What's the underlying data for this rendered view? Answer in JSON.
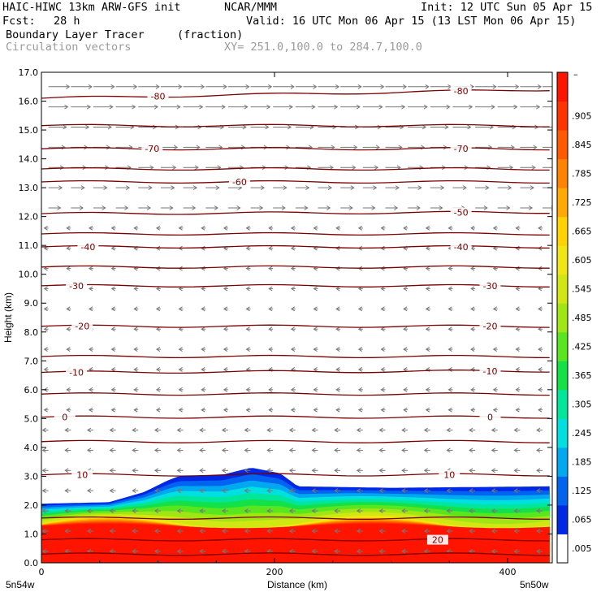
{
  "header": {
    "model": "HAIC-HIWC 13km ARW-GFS init",
    "org": "NCAR/MMM",
    "init": "Init: 12 UTC Sun 05 Apr 15",
    "fcst_label": "Fcst:",
    "fcst_value": "28 h",
    "valid": "Valid: 16 UTC Mon 06 Apr 15 (13 LST Mon 06 Apr 15)",
    "field": "Boundary Layer Tracer",
    "units": "(fraction)",
    "vectors": "Circulation vectors",
    "xy": "XY= 251.0,100.0 to 284.7,100.0"
  },
  "colorbar": {
    "labels": [
      ".005",
      ".065",
      ".125",
      ".185",
      ".245",
      ".305",
      ".365",
      ".425",
      ".485",
      ".545",
      ".605",
      ".665",
      ".725",
      ".785",
      ".845",
      ".905"
    ],
    "top_label": "–",
    "colors": [
      "#ffffff",
      "#0028e6",
      "#0064f0",
      "#00a8f0",
      "#00e0e0",
      "#00e69a",
      "#14e048",
      "#5ae61e",
      "#a0e614",
      "#d2e614",
      "#f0e614",
      "#ffd200",
      "#ffaa00",
      "#ff8200",
      "#ff5a00",
      "#ff3200",
      "#ff1400"
    ]
  },
  "chart_data": {
    "type": "contour",
    "xlabel": "Distance (km)",
    "ylabel": "Height (km)",
    "xlim": [
      0,
      436
    ],
    "ylim": [
      0,
      17
    ],
    "xticks": [
      0,
      200,
      400
    ],
    "yticks": [
      "0.0",
      "1.0",
      "2.0",
      "3.0",
      "4.0",
      "5.0",
      "6.0",
      "7.0",
      "8.0",
      "9.0",
      "10.0",
      "11.0",
      "12.0",
      "13.0",
      "14.0",
      "15.0",
      "16.0",
      "17.0"
    ],
    "x_end_labels": [
      "5n54w",
      "5n50w"
    ],
    "tracer_top_km": [
      [
        0,
        2.05
      ],
      [
        58,
        2.1
      ],
      [
        88,
        2.45
      ],
      [
        108,
        2.85
      ],
      [
        118,
        3.0
      ],
      [
        155,
        3.05
      ],
      [
        180,
        3.3
      ],
      [
        205,
        3.1
      ],
      [
        220,
        2.65
      ],
      [
        300,
        2.6
      ],
      [
        436,
        2.65
      ]
    ],
    "isotherms": [
      {
        "label": "-80",
        "y": [
          16.1,
          16.4
        ],
        "label_x": [
          100,
          360
        ]
      },
      {
        "label": "-70",
        "y": [
          14.35,
          14.35
        ],
        "label_x": [
          95,
          360
        ]
      },
      {
        "label": "-60",
        "y": [
          13.2,
          13.2
        ],
        "label_x": [
          170,
          null
        ]
      },
      {
        "label": "-50",
        "y": [
          12.1,
          12.15
        ],
        "label_x": [
          null,
          360
        ]
      },
      {
        "label": "-40",
        "y": [
          10.95,
          10.95
        ],
        "label_x": [
          40,
          360
        ]
      },
      {
        "label": "-30",
        "y": [
          9.6,
          9.6
        ],
        "label_x": [
          30,
          385
        ]
      },
      {
        "label": "-20",
        "y": [
          8.2,
          8.2
        ],
        "label_x": [
          35,
          385
        ]
      },
      {
        "label": "-10",
        "y": [
          6.6,
          6.65
        ],
        "label_x": [
          30,
          385
        ]
      },
      {
        "label": "0",
        "y": [
          5.05,
          5.05
        ],
        "label_x": [
          20,
          385
        ]
      },
      {
        "label": "10",
        "y": [
          3.05,
          3.05
        ],
        "label_x": [
          35,
          350
        ]
      },
      {
        "label": "20",
        "y": [
          0.8,
          0.8
        ],
        "label_x": [
          null,
          340
        ]
      }
    ],
    "extra_contours_km": [
      15.15,
      13.65,
      11.4,
      10.25,
      7.15,
      5.85,
      4.2,
      1.55,
      0.3
    ]
  }
}
